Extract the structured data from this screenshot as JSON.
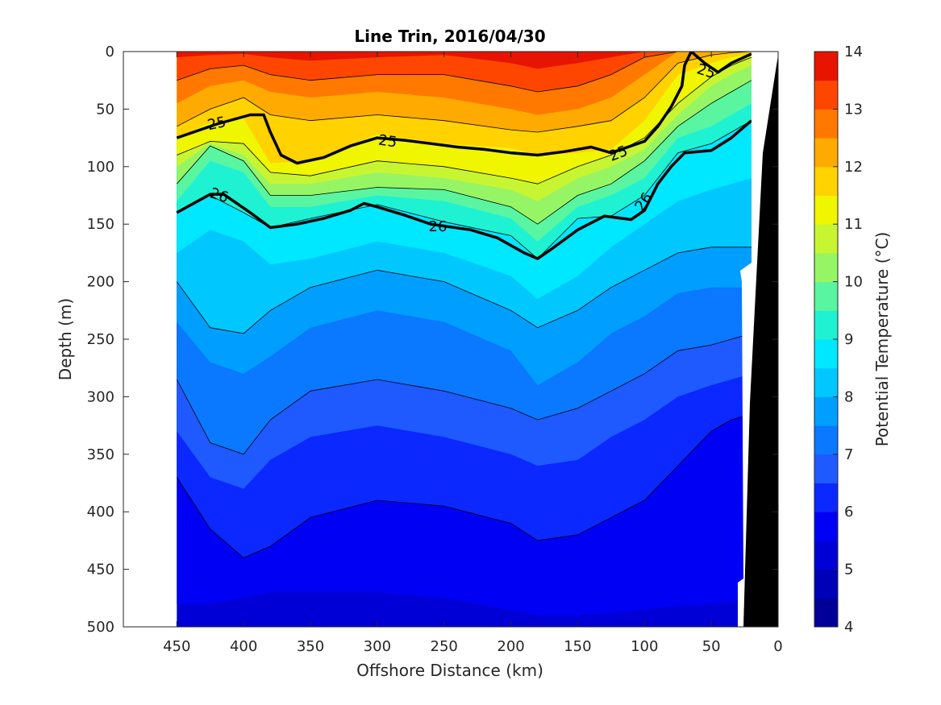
{
  "chart_data": {
    "type": "filled-contour",
    "title": "Line Trin, 2016/04/30",
    "xlabel": "Offshore Distance (km)",
    "ylabel": "Depth (m)",
    "xlim": [
      490,
      0
    ],
    "ylim": [
      0,
      500
    ],
    "x_ticks": [
      450,
      400,
      350,
      300,
      250,
      200,
      150,
      100,
      50,
      0
    ],
    "y_ticks": [
      0,
      50,
      100,
      150,
      200,
      250,
      300,
      350,
      400,
      450,
      500
    ],
    "colorbar": {
      "label": "Potential Temperature (°C)",
      "ticks": [
        4,
        5,
        6,
        7,
        8,
        9,
        10,
        11,
        12,
        13,
        14
      ],
      "levels": [
        4,
        4.5,
        5,
        5.5,
        6,
        6.5,
        7,
        7.5,
        8,
        8.5,
        9,
        9.5,
        10,
        10.5,
        11,
        11.5,
        12,
        12.5,
        13,
        13.5,
        14
      ],
      "colors": [
        "#000099",
        "#0000B8",
        "#0000D6",
        "#0000F5",
        "#0A28FF",
        "#1E5AFF",
        "#0A78FF",
        "#009FFF",
        "#00C8FF",
        "#00E8FF",
        "#1EF2D2",
        "#5AF5A0",
        "#96F564",
        "#C8F532",
        "#F0F500",
        "#FFD200",
        "#FFAA00",
        "#FF7800",
        "#FF4600",
        "#E61400",
        "#AA0000"
      ]
    },
    "isotherms": {
      "x": [
        450,
        425,
        400,
        380,
        350,
        300,
        250,
        200,
        180,
        150,
        125,
        100,
        75,
        50,
        35,
        20
      ],
      "depths": [
        {
          "temp": 5.5,
          "values": [
            480,
            480,
            475,
            470,
            470,
            470,
            475,
            485,
            490,
            490,
            488,
            485,
            482,
            480,
            478,
            475
          ]
        },
        {
          "temp": 6,
          "values": [
            370,
            415,
            440,
            430,
            405,
            390,
            395,
            410,
            425,
            420,
            405,
            390,
            360,
            330,
            320,
            315
          ]
        },
        {
          "temp": 6.5,
          "values": [
            330,
            370,
            380,
            355,
            335,
            325,
            335,
            350,
            360,
            355,
            335,
            320,
            300,
            290,
            285,
            280
          ]
        },
        {
          "temp": 7,
          "values": [
            285,
            340,
            350,
            320,
            295,
            285,
            295,
            310,
            320,
            310,
            295,
            280,
            260,
            255,
            250,
            245
          ]
        },
        {
          "temp": 7.5,
          "values": [
            235,
            270,
            280,
            265,
            240,
            225,
            235,
            260,
            290,
            270,
            245,
            230,
            210,
            205,
            205,
            205
          ]
        },
        {
          "temp": 8,
          "values": [
            200,
            240,
            245,
            225,
            205,
            190,
            200,
            225,
            240,
            225,
            205,
            190,
            175,
            170,
            170,
            170
          ]
        },
        {
          "temp": 8.5,
          "values": [
            175,
            155,
            165,
            185,
            180,
            165,
            175,
            195,
            215,
            195,
            170,
            150,
            130,
            120,
            115,
            110
          ]
        },
        {
          "temp": 9,
          "values": [
            140,
            125,
            140,
            153,
            145,
            133,
            148,
            160,
            180,
            145,
            143,
            125,
            88,
            80,
            70,
            60
          ]
        },
        {
          "temp": 9.5,
          "values": [
            130,
            95,
            105,
            135,
            135,
            125,
            130,
            145,
            165,
            135,
            125,
            110,
            75,
            65,
            55,
            45
          ]
        },
        {
          "temp": 10,
          "values": [
            115,
            82,
            95,
            125,
            125,
            118,
            120,
            135,
            150,
            125,
            115,
            95,
            65,
            45,
            35,
            25
          ]
        },
        {
          "temp": 10.5,
          "values": [
            100,
            80,
            90,
            115,
            115,
            105,
            110,
            120,
            130,
            110,
            100,
            85,
            55,
            30,
            20,
            12
          ]
        },
        {
          "temp": 11,
          "values": [
            90,
            78,
            80,
            105,
            108,
            95,
            100,
            110,
            115,
            100,
            90,
            75,
            45,
            22,
            12,
            5
          ]
        },
        {
          "temp": 11.5,
          "values": [
            75,
            62,
            58,
            97,
            95,
            72,
            80,
            84,
            90,
            88,
            85,
            60,
            20,
            10,
            5,
            2
          ]
        },
        {
          "temp": 12,
          "values": [
            65,
            50,
            40,
            55,
            60,
            55,
            60,
            68,
            70,
            65,
            60,
            40,
            10,
            3,
            1,
            0
          ]
        },
        {
          "temp": 12.5,
          "values": [
            45,
            30,
            25,
            35,
            40,
            35,
            40,
            50,
            55,
            50,
            40,
            20,
            0,
            0,
            0,
            0
          ]
        },
        {
          "temp": 13,
          "values": [
            25,
            15,
            12,
            20,
            25,
            20,
            20,
            30,
            35,
            30,
            20,
            5,
            0,
            0,
            0,
            0
          ]
        },
        {
          "temp": 13.5,
          "values": [
            5,
            3,
            2,
            5,
            8,
            5,
            3,
            10,
            15,
            10,
            5,
            0,
            0,
            0,
            0,
            0
          ]
        }
      ]
    },
    "density_contours": [
      {
        "label": "25",
        "x": [
          450,
          420,
          395,
          385,
          380,
          372,
          360,
          340,
          320,
          300,
          280,
          260,
          240,
          220,
          200,
          180,
          160,
          140,
          125,
          100,
          90,
          80,
          72,
          70,
          65,
          55,
          45,
          35,
          20
        ],
        "depths": [
          75,
          63,
          55,
          55,
          70,
          90,
          97,
          92,
          82,
          75,
          77,
          80,
          83,
          85,
          88,
          90,
          87,
          83,
          88,
          78,
          65,
          48,
          30,
          12,
          0,
          10,
          18,
          10,
          2
        ]
      },
      {
        "label": "26",
        "x": [
          450,
          425,
          415,
          395,
          380,
          360,
          340,
          320,
          310,
          300,
          280,
          260,
          230,
          210,
          190,
          180,
          170,
          150,
          130,
          110,
          100,
          90,
          80,
          70,
          50,
          35,
          20
        ],
        "depths": [
          140,
          124,
          124,
          140,
          153,
          150,
          145,
          138,
          132,
          135,
          142,
          150,
          155,
          162,
          175,
          180,
          172,
          155,
          143,
          146,
          138,
          115,
          100,
          88,
          86,
          75,
          60
        ]
      }
    ],
    "contour_labels": [
      "25",
      "25",
      "25",
      "25",
      "26",
      "26",
      "26"
    ]
  }
}
